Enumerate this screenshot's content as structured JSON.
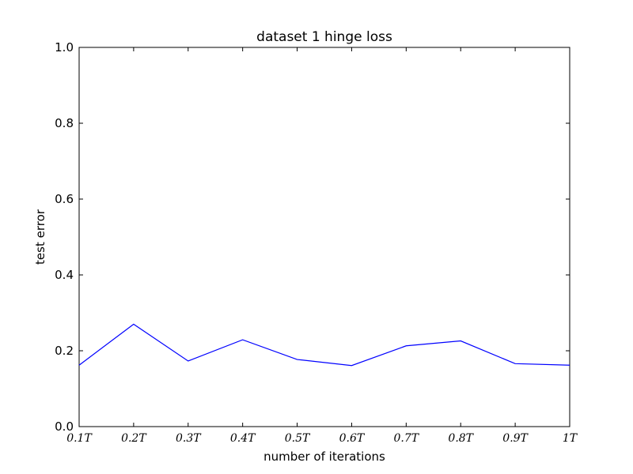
{
  "chart_data": {
    "type": "line",
    "title": "dataset 1 hinge loss",
    "xlabel": "number of iterations",
    "ylabel": "test error",
    "categories": [
      "0.1T",
      "0.2T",
      "0.3T",
      "0.4T",
      "0.5T",
      "0.6T",
      "0.7T",
      "0.8T",
      "0.9T",
      "1T"
    ],
    "x": [
      0.1,
      0.2,
      0.3,
      0.4,
      0.5,
      0.6,
      0.7,
      0.8,
      0.9,
      1.0
    ],
    "series": [
      {
        "values": [
          0.162,
          0.27,
          0.173,
          0.229,
          0.177,
          0.161,
          0.213,
          0.226,
          0.166,
          0.162
        ]
      }
    ],
    "xlim": [
      0.1,
      1.0
    ],
    "ylim": [
      0.0,
      1.0
    ],
    "yticks": [
      "0.0",
      "0.2",
      "0.4",
      "0.6",
      "0.8",
      "1.0"
    ],
    "grid": false,
    "line_color": "#0000ff"
  }
}
